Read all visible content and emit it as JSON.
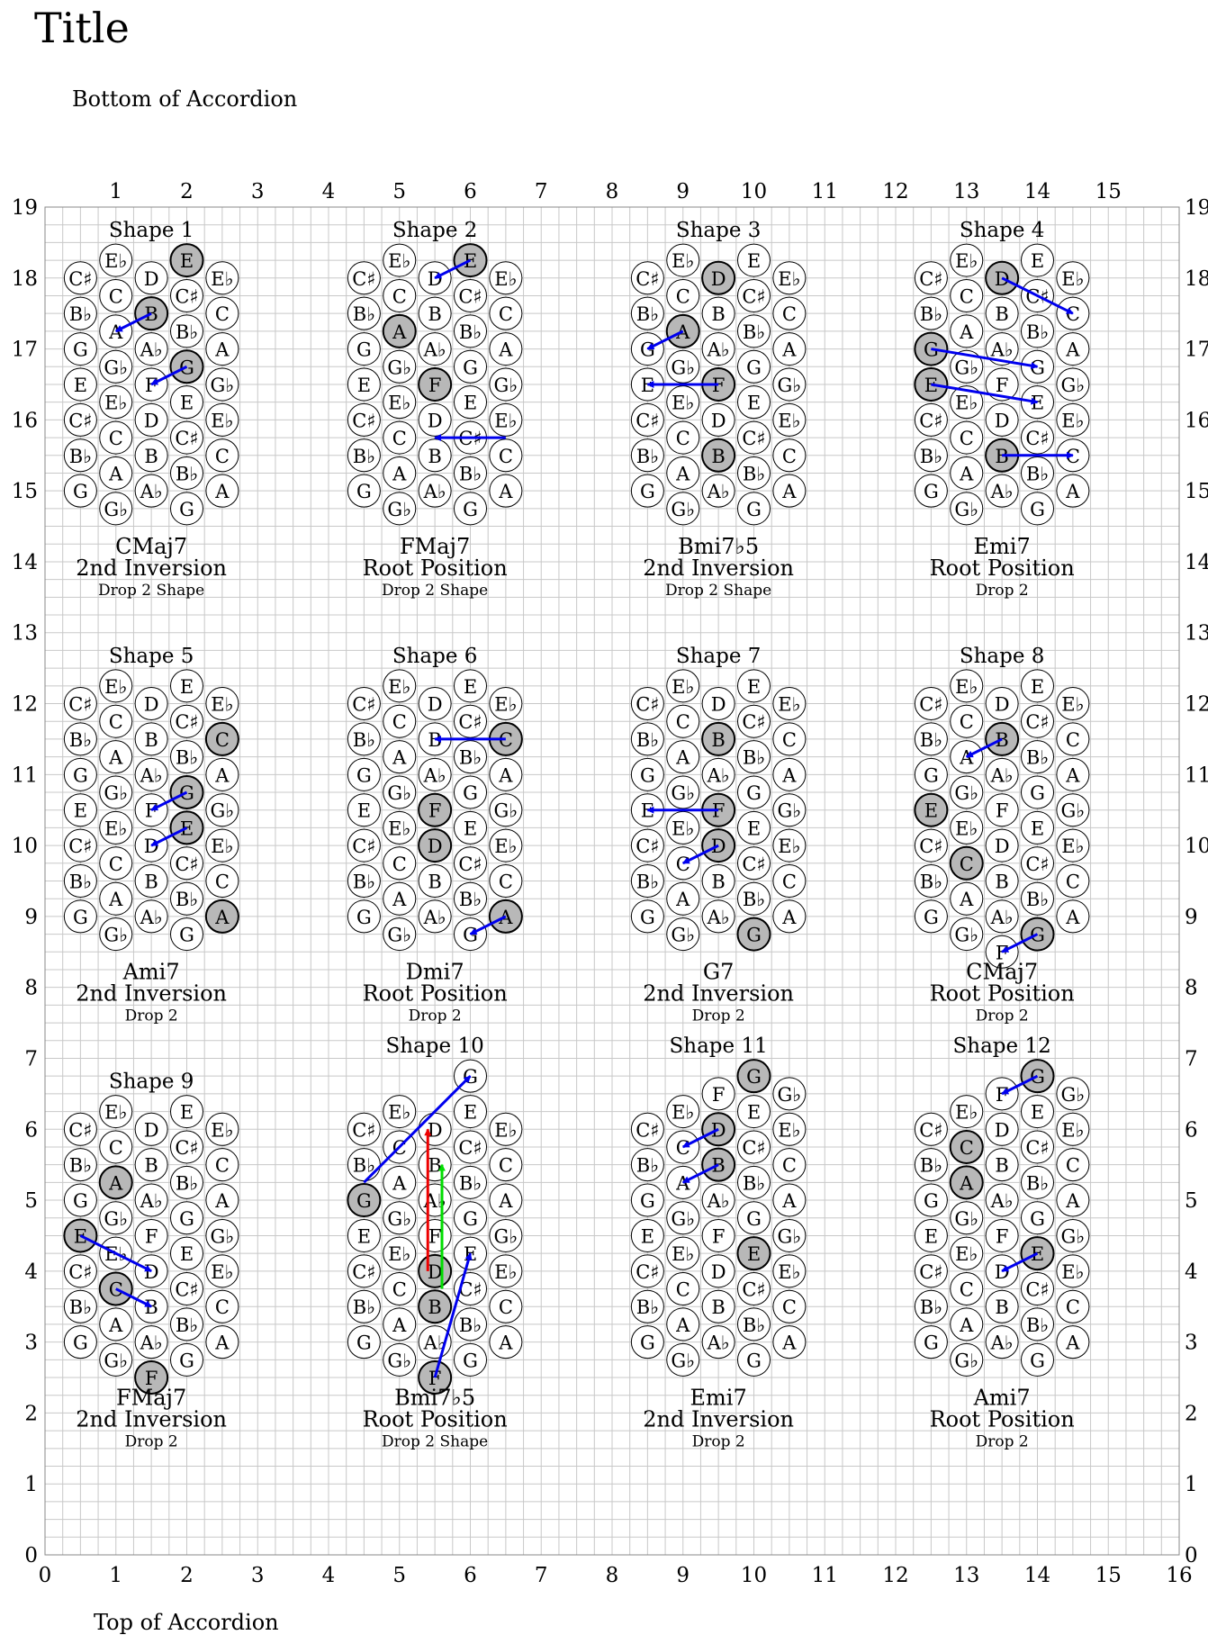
{
  "title": "Title",
  "bottom_label": "Bottom of Accordion",
  "top_label": "Top of Accordion",
  "x_axis": {
    "min": 0,
    "max": 16,
    "top_ticks": [
      "1",
      "2",
      "3",
      "4",
      "5",
      "6",
      "7",
      "8",
      "9",
      "10",
      "11",
      "12",
      "13",
      "14",
      "15"
    ],
    "bottom_ticks": [
      "0",
      "1",
      "2",
      "3",
      "4",
      "5",
      "6",
      "7",
      "8",
      "9",
      "10",
      "11",
      "12",
      "13",
      "14",
      "15",
      "16"
    ]
  },
  "y_axis": {
    "min": 0,
    "max": 19,
    "ticks": [
      "0",
      "1",
      "2",
      "3",
      "4",
      "5",
      "6",
      "7",
      "8",
      "9",
      "10",
      "11",
      "12",
      "13",
      "14",
      "15",
      "16",
      "17",
      "18",
      "19"
    ]
  },
  "note_labels": {
    "flat": "♭",
    "sharp": "♯"
  },
  "colors": {
    "grid": "#c8c8c8",
    "highlight": "#b8b8b8",
    "arrow": "#0000ee",
    "arrow_red": "#ee0000",
    "arrow_green": "#00dd00"
  },
  "base_pattern": [
    {
      "dx": -1.0,
      "dy": 2.0,
      "n": "C♯"
    },
    {
      "dx": -0.5,
      "dy": 2.25,
      "n": "E♭"
    },
    {
      "dx": 0.0,
      "dy": 2.0,
      "n": "D"
    },
    {
      "dx": 0.5,
      "dy": 2.25,
      "n": "E"
    },
    {
      "dx": 1.0,
      "dy": 2.0,
      "n": "E♭"
    },
    {
      "dx": -0.5,
      "dy": 1.75,
      "n": "C"
    },
    {
      "dx": 0.5,
      "dy": 1.75,
      "n": "C♯"
    },
    {
      "dx": -1.0,
      "dy": 1.5,
      "n": "B♭"
    },
    {
      "dx": 0.0,
      "dy": 1.5,
      "n": "B"
    },
    {
      "dx": 1.0,
      "dy": 1.5,
      "n": "C"
    },
    {
      "dx": -0.5,
      "dy": 1.25,
      "n": "A"
    },
    {
      "dx": 0.5,
      "dy": 1.25,
      "n": "B♭"
    },
    {
      "dx": -1.0,
      "dy": 1.0,
      "n": "G"
    },
    {
      "dx": 0.0,
      "dy": 1.0,
      "n": "A♭"
    },
    {
      "dx": 1.0,
      "dy": 1.0,
      "n": "A"
    },
    {
      "dx": -0.5,
      "dy": 0.75,
      "n": "G♭"
    },
    {
      "dx": 0.5,
      "dy": 0.75,
      "n": "G"
    },
    {
      "dx": -1.0,
      "dy": 0.5,
      "n": "E"
    },
    {
      "dx": 0.0,
      "dy": 0.5,
      "n": "F"
    },
    {
      "dx": 1.0,
      "dy": 0.5,
      "n": "G♭"
    },
    {
      "dx": -0.5,
      "dy": 0.25,
      "n": "E♭"
    },
    {
      "dx": 0.5,
      "dy": 0.25,
      "n": "E"
    },
    {
      "dx": -1.0,
      "dy": 0.0,
      "n": "C♯"
    },
    {
      "dx": 0.0,
      "dy": 0.0,
      "n": "D"
    },
    {
      "dx": 1.0,
      "dy": 0.0,
      "n": "E♭"
    },
    {
      "dx": -0.5,
      "dy": -0.25,
      "n": "C"
    },
    {
      "dx": 0.5,
      "dy": -0.25,
      "n": "C♯"
    },
    {
      "dx": -1.0,
      "dy": -0.5,
      "n": "B♭"
    },
    {
      "dx": 0.0,
      "dy": -0.5,
      "n": "B"
    },
    {
      "dx": 1.0,
      "dy": -0.5,
      "n": "C"
    },
    {
      "dx": -0.5,
      "dy": -0.75,
      "n": "A"
    },
    {
      "dx": 0.5,
      "dy": -0.75,
      "n": "B♭"
    },
    {
      "dx": -1.0,
      "dy": -1.0,
      "n": "G"
    },
    {
      "dx": 0.0,
      "dy": -1.0,
      "n": "A♭"
    },
    {
      "dx": 1.0,
      "dy": -1.0,
      "n": "A"
    },
    {
      "dx": -0.5,
      "dy": -1.25,
      "n": "G♭"
    },
    {
      "dx": 0.5,
      "dy": -1.25,
      "n": "G"
    }
  ],
  "shapes": [
    {
      "label": "Shape 1",
      "cx": 1.5,
      "cy": 16.0,
      "chord": "CMaj7",
      "inversion": "2nd Inversion",
      "voicing": "Drop 2 Shape",
      "highlight": [
        [
          0.5,
          2.25
        ],
        [
          0.0,
          1.5
        ],
        [
          0.5,
          0.75
        ],
        [
          1.0,
          -0.25
        ]
      ],
      "arrows": [
        [
          0.0,
          1.5,
          -0.5,
          1.25,
          "blue"
        ],
        [
          0.5,
          0.75,
          0.0,
          0.5,
          "blue"
        ]
      ]
    },
    {
      "label": "Shape 2",
      "cx": 5.5,
      "cy": 16.0,
      "chord": "FMaj7",
      "inversion": "Root Position",
      "voicing": "Drop 2 Shape",
      "highlight": [
        [
          0.5,
          2.25
        ],
        [
          -0.5,
          1.25
        ],
        [
          0.0,
          0.5
        ],
        [
          1.0,
          -0.25
        ]
      ],
      "arrows": [
        [
          0.5,
          2.25,
          0.0,
          2.0,
          "blue"
        ],
        [
          1.0,
          -0.25,
          0.0,
          -0.25,
          "blue"
        ]
      ]
    },
    {
      "label": "Shape 3",
      "cx": 9.5,
      "cy": 16.0,
      "chord": "Bmi7♭5",
      "inversion": "2nd Inversion",
      "voicing": "Drop 2 Shape",
      "highlight": [
        [
          0.0,
          2.0
        ],
        [
          -0.5,
          1.25
        ],
        [
          0.0,
          0.5
        ],
        [
          0.0,
          -0.5
        ]
      ],
      "arrows": [
        [
          -0.5,
          1.25,
          -1.0,
          1.0,
          "blue"
        ],
        [
          0.0,
          0.5,
          -1.0,
          0.5,
          "blue"
        ]
      ]
    },
    {
      "label": "Shape 4",
      "cx": 13.5,
      "cy": 16.0,
      "chord": "Emi7",
      "inversion": "Root Position",
      "voicing": "Drop 2",
      "highlight": [
        [
          0.0,
          2.0
        ],
        [
          -1.0,
          1.0
        ],
        [
          -1.0,
          0.5
        ],
        [
          0.0,
          -0.5
        ]
      ],
      "arrows": [
        [
          0.0,
          2.0,
          1.0,
          1.5,
          "blue"
        ],
        [
          -1.0,
          1.0,
          0.5,
          0.75,
          "blue"
        ],
        [
          -1.0,
          0.5,
          0.5,
          0.25,
          "blue"
        ],
        [
          0.0,
          -0.5,
          1.0,
          -0.5,
          "blue"
        ]
      ]
    },
    {
      "label": "Shape 5",
      "cx": 1.5,
      "cy": 10.0,
      "chord": "Ami7",
      "inversion": "2nd Inversion",
      "voicing": "Drop 2",
      "highlight": [
        [
          1.0,
          1.5
        ],
        [
          0.5,
          0.75
        ],
        [
          0.5,
          0.25
        ],
        [
          1.0,
          -1.0
        ]
      ],
      "arrows": [
        [
          0.5,
          0.75,
          0.0,
          0.5,
          "blue"
        ],
        [
          0.5,
          0.25,
          0.0,
          0.0,
          "blue"
        ]
      ]
    },
    {
      "label": "Shape 6",
      "cx": 5.5,
      "cy": 10.0,
      "chord": "Dmi7",
      "inversion": "Root Position",
      "voicing": "Drop 2",
      "highlight": [
        [
          1.0,
          1.5
        ],
        [
          0.0,
          0.5
        ],
        [
          0.0,
          0.0
        ],
        [
          1.0,
          -1.0
        ]
      ],
      "arrows": [
        [
          1.0,
          1.5,
          0.0,
          1.5,
          "blue"
        ],
        [
          1.0,
          -1.0,
          0.5,
          -1.25,
          "blue"
        ]
      ]
    },
    {
      "label": "Shape 7",
      "cx": 9.5,
      "cy": 10.0,
      "chord": "G7",
      "inversion": "2nd Inversion",
      "voicing": "Drop 2",
      "highlight": [
        [
          0.0,
          1.5
        ],
        [
          0.0,
          0.5
        ],
        [
          0.0,
          0.0
        ],
        [
          0.5,
          -1.25
        ]
      ],
      "arrows": [
        [
          0.0,
          0.5,
          -1.0,
          0.5,
          "blue"
        ],
        [
          0.0,
          0.0,
          -0.5,
          -0.25,
          "blue"
        ]
      ]
    },
    {
      "label": "Shape 8",
      "cx": 13.5,
      "cy": 10.0,
      "chord": "CMaj7",
      "inversion": "Root Position",
      "voicing": "Drop 2",
      "highlight": [
        [
          0.0,
          1.5
        ],
        [
          -1.0,
          0.5
        ],
        [
          -0.5,
          -0.25
        ],
        [
          0.5,
          -1.25
        ]
      ],
      "arrows": [
        [
          0.0,
          1.5,
          -0.5,
          1.25,
          "blue"
        ],
        [
          0.5,
          -1.25,
          0.0,
          -1.5,
          "blue"
        ]
      ],
      "extra": [
        [
          0.0,
          -1.5,
          "F"
        ]
      ]
    },
    {
      "label": "Shape 9",
      "cx": 1.5,
      "cy": 4.0,
      "chord": "FMaj7",
      "inversion": "2nd Inversion",
      "voicing": "Drop 2",
      "highlight": [
        [
          -0.5,
          1.25
        ],
        [
          -1.0,
          0.5
        ],
        [
          -0.5,
          -0.25
        ],
        [
          0.0,
          -1.5
        ]
      ],
      "arrows": [
        [
          -1.0,
          0.5,
          0.0,
          0.0,
          "blue"
        ],
        [
          -0.5,
          -0.25,
          0.0,
          -0.5,
          "blue"
        ]
      ],
      "extra": [
        [
          0.0,
          -1.5,
          "F"
        ]
      ]
    },
    {
      "label": "Shape 10",
      "cx": 5.5,
      "cy": 4.0,
      "chord": "Bmi7♭5",
      "inversion": "Root Position",
      "voicing": "Drop 2 Shape",
      "highlight": [
        [
          -1.0,
          1.0
        ],
        [
          0.0,
          0.0
        ],
        [
          0.0,
          -0.5
        ],
        [
          0.0,
          -1.5
        ]
      ],
      "arrows": [
        [
          -1.0,
          1.25,
          0.5,
          2.75,
          "blue"
        ],
        [
          0.0,
          -1.5,
          0.5,
          0.25,
          "blue"
        ],
        [
          -0.1,
          0.0,
          -0.1,
          2.0,
          "red"
        ],
        [
          0.1,
          -0.25,
          0.1,
          1.5,
          "green"
        ]
      ],
      "extra": [
        [
          0.0,
          -1.5,
          "F"
        ],
        [
          0.5,
          2.75,
          "G"
        ]
      ]
    },
    {
      "label": "Shape 11",
      "cx": 9.5,
      "cy": 4.0,
      "chord": "Emi7",
      "inversion": "2nd Inversion",
      "voicing": "Drop 2",
      "highlight": [
        [
          0.0,
          2.0
        ],
        [
          0.0,
          1.5
        ],
        [
          0.5,
          0.25
        ],
        [
          0.5,
          2.75
        ]
      ],
      "arrows": [
        [
          0.0,
          2.0,
          -0.5,
          1.75,
          "blue"
        ],
        [
          0.0,
          1.5,
          -0.5,
          1.25,
          "blue"
        ]
      ],
      "extra": [
        [
          0.0,
          2.5,
          "F"
        ],
        [
          0.5,
          2.75,
          "G"
        ],
        [
          1.0,
          2.5,
          "G♭"
        ]
      ]
    },
    {
      "label": "Shape 12",
      "cx": 13.5,
      "cy": 4.0,
      "chord": "Ami7",
      "inversion": "Root Position",
      "voicing": "Drop 2",
      "highlight": [
        [
          -0.5,
          1.75
        ],
        [
          -0.5,
          1.25
        ],
        [
          0.5,
          0.25
        ],
        [
          0.5,
          2.75
        ]
      ],
      "arrows": [
        [
          0.5,
          2.75,
          0.0,
          2.5,
          "blue"
        ],
        [
          0.5,
          0.25,
          0.0,
          0.0,
          "blue"
        ]
      ],
      "extra": [
        [
          0.0,
          2.5,
          "F"
        ],
        [
          0.5,
          2.75,
          "G"
        ],
        [
          1.0,
          2.5,
          "G♭"
        ]
      ]
    }
  ]
}
